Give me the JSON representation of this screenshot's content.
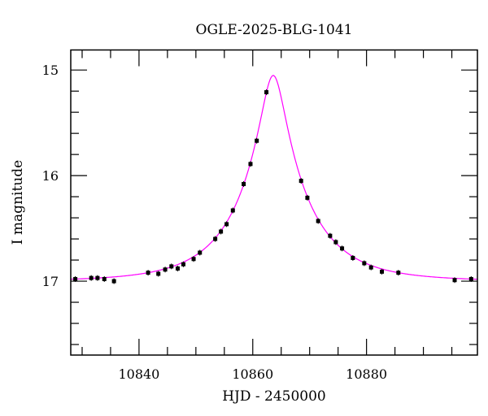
{
  "chart_data": {
    "type": "scatter",
    "title": "OGLE-2025-BLG-1041",
    "xlabel": "HJD - 2450000",
    "ylabel": "I magnitude",
    "xlim": [
      10828,
      10899.5
    ],
    "ylim": [
      17.7,
      14.81
    ],
    "y_inverted": true,
    "x_ticks": [
      10840,
      10860,
      10880
    ],
    "x_tick_labels": [
      "10840",
      "10860",
      "10880"
    ],
    "x_minor_step": 5,
    "y_ticks": [
      15,
      16,
      17
    ],
    "y_tick_labels": [
      "15",
      "16",
      "17"
    ],
    "y_minor_step": 0.2,
    "grid": false,
    "colors": {
      "points": "#000000",
      "model": "#ff00ff"
    },
    "series": [
      {
        "kind": "points",
        "x": [
          10828.8,
          10831.6,
          10832.7,
          10833.9,
          10835.6,
          10841.6,
          10843.4,
          10844.6,
          10845.7,
          10846.8,
          10847.8,
          10849.6,
          10850.7,
          10853.4,
          10854.4,
          10855.4,
          10856.5,
          10858.4,
          10859.6,
          10860.7,
          10862.4,
          10868.5,
          10869.6,
          10871.5,
          10873.6,
          10874.6,
          10875.7,
          10877.6,
          10879.6,
          10880.8,
          10882.7,
          10885.6,
          10895.5,
          10898.4
        ],
        "y": [
          16.98,
          16.97,
          16.97,
          16.98,
          17.0,
          16.92,
          16.93,
          16.89,
          16.86,
          16.88,
          16.84,
          16.79,
          16.73,
          16.6,
          16.53,
          16.46,
          16.33,
          16.08,
          15.89,
          15.67,
          15.21,
          16.05,
          16.21,
          16.43,
          16.57,
          16.63,
          16.69,
          16.78,
          16.83,
          16.87,
          16.91,
          16.92,
          16.99,
          16.98
        ]
      },
      {
        "kind": "model",
        "model": "point-lens",
        "t0": 10863.6,
        "u0": 0.168,
        "tE": 12.0,
        "baseline": 17.0
      }
    ]
  }
}
